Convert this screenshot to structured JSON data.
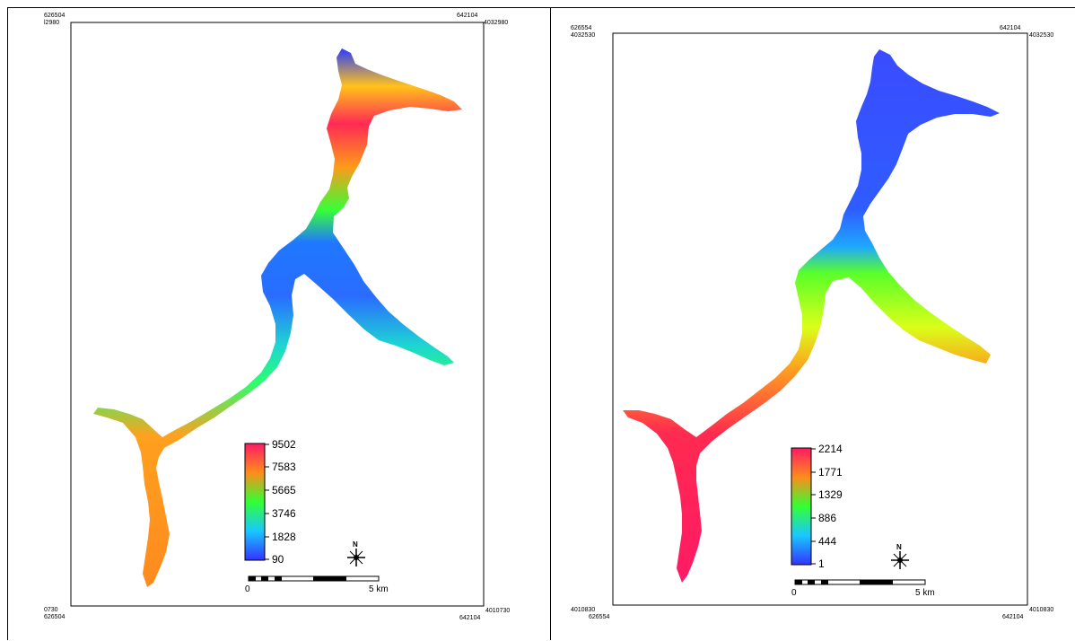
{
  "panels": [
    {
      "id": "left",
      "frame_labels": {
        "top_left_x": "626504",
        "top_left_y": "l2980",
        "top_right_x": "642104",
        "top_right_y": "4032980",
        "bottom_left_y": "0730",
        "bottom_left_x": "626504",
        "bottom_right_y": "4010730",
        "bottom_right_x": "642104"
      },
      "legend": {
        "ticks": [
          "9502",
          "7583",
          "5665",
          "3746",
          "1828",
          "90"
        ]
      },
      "scale_bar": {
        "start_label": "0",
        "end_label": "5 km"
      },
      "north_label": "N"
    },
    {
      "id": "right",
      "frame_labels": {
        "top_left_x": "626554",
        "top_left_y": "4032530",
        "top_right_x": "642104",
        "top_right_y": "4032530",
        "bottom_left_y": "4010830",
        "bottom_left_x": "626554",
        "bottom_right_y": "4010830",
        "bottom_right_x": "642104"
      },
      "legend": {
        "ticks": [
          "2214",
          "1771",
          "1329",
          "886",
          "444",
          "1"
        ]
      },
      "scale_bar": {
        "start_label": "0",
        "end_label": "5 km"
      },
      "north_label": "N"
    }
  ],
  "colors": {
    "ramp_high": "#ff1a66",
    "ramp_mid_high": "#ff8c1a",
    "ramp_mid": "#33ff33",
    "ramp_mid_low": "#19c8ff",
    "ramp_low": "#3333ff"
  }
}
